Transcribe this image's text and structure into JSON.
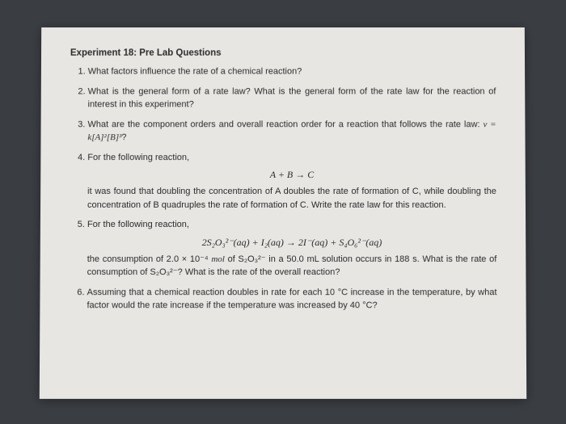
{
  "title": "Experiment 18: Pre Lab Questions",
  "q1": "What factors influence the rate of a chemical reaction?",
  "q2": "What is the general form of a rate law? What is the general form of the rate law for the reaction of interest in this experiment?",
  "q3_a": "What are the component orders and overall reaction order for a reaction that follows the rate law: ",
  "q3_eq": "v = k[A]²[B]³",
  "q3_b": "?",
  "q4_a": "For the following reaction,",
  "q4_eq": "A + B → C",
  "q4_b": "it was found that doubling the concentration of A doubles the rate of formation of C, while doubling the concentration of B quadruples the rate of formation of C. Write the rate law for this reaction.",
  "q5_a": "For the following reaction,",
  "q5_eq": "2S₂O₃²⁻(aq) + I₂(aq) → 2I⁻(aq) + S₄O₆²⁻(aq)",
  "q5_b_a": "the consumption of 2.0 × 10⁻⁴ ",
  "q5_b_mol": "mol",
  "q5_b_b": " of S₂O₃²⁻ in a 50.0 mL solution occurs in 188 s. What is the rate of consumption of S₂O₃²⁻? What is the rate of the overall reaction?",
  "q6": "Assuming that a chemical reaction doubles in rate for each 10 °C increase in the temperature, by what factor would the rate increase if the temperature was increased by 40 °C?"
}
